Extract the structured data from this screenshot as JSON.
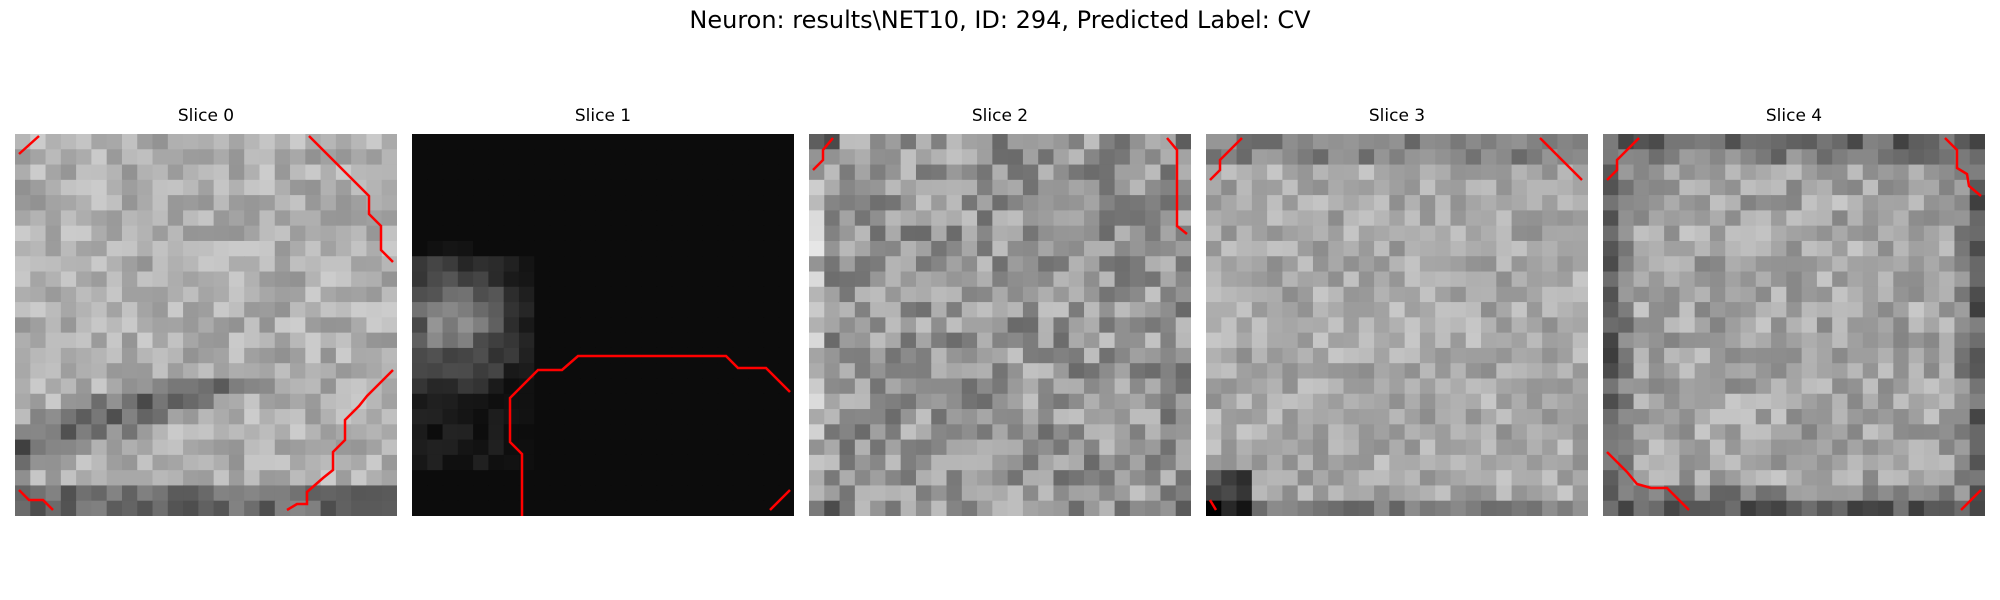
{
  "figure": {
    "title": "Neuron: results\\NET10, ID: 294, Predicted Label: CV"
  },
  "colors": {
    "background": "#ffffff",
    "contour": "#ff0000",
    "colormap": "gray"
  },
  "panels": [
    {
      "title": "Slice 0"
    },
    {
      "title": "Slice 1"
    },
    {
      "title": "Slice 2"
    },
    {
      "title": "Slice 3"
    },
    {
      "title": "Slice 4"
    }
  ]
}
